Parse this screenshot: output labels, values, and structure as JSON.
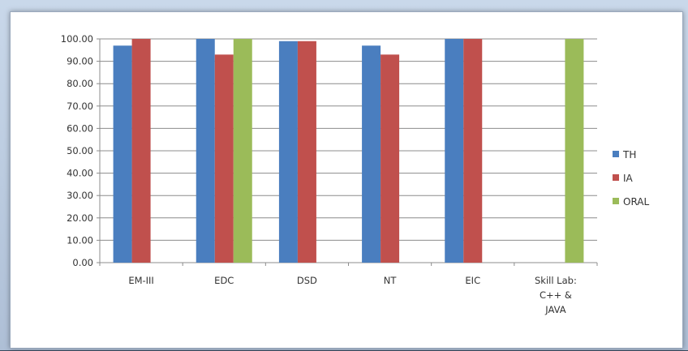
{
  "chart_data": {
    "type": "bar",
    "categories": [
      [
        "EM-III"
      ],
      [
        "EDC"
      ],
      [
        "DSD"
      ],
      [
        "NT"
      ],
      [
        "EIC"
      ],
      [
        "Skill Lab:",
        "C++ &",
        "JAVA"
      ]
    ],
    "series": [
      {
        "name": "TH",
        "color": "#4a7ebf",
        "values": [
          97,
          100,
          99,
          97,
          100,
          null
        ]
      },
      {
        "name": "IA",
        "color": "#c0504d",
        "values": [
          100,
          93,
          99,
          93,
          100,
          null
        ]
      },
      {
        "name": "ORAL",
        "color": "#9bbb59",
        "values": [
          null,
          100,
          null,
          null,
          null,
          100
        ]
      }
    ],
    "y_ticks": [
      "0.00",
      "10.00",
      "20.00",
      "30.00",
      "40.00",
      "50.00",
      "60.00",
      "70.00",
      "80.00",
      "90.00",
      "100.00"
    ],
    "ylim": [
      0,
      100
    ],
    "grid": true,
    "legend_position": "right"
  }
}
